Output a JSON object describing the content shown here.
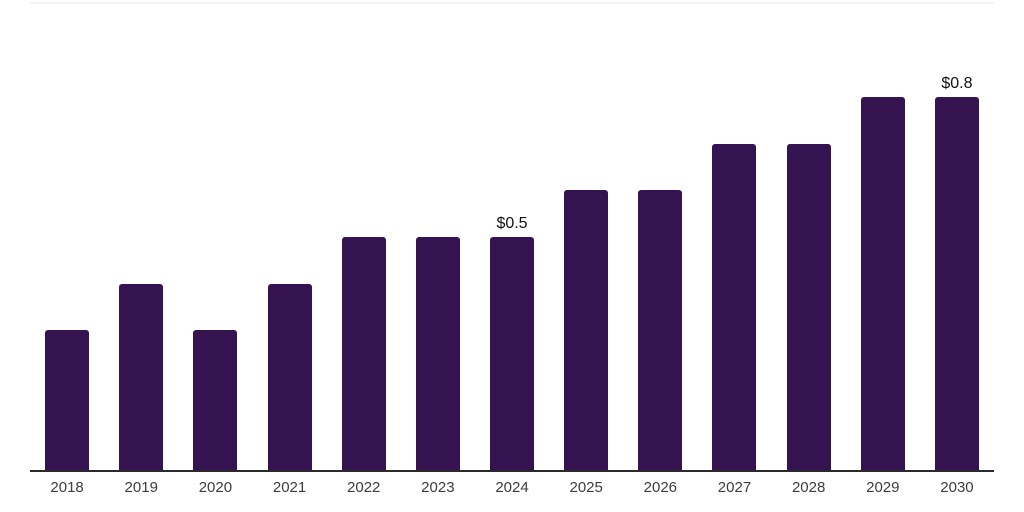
{
  "chart_data": {
    "type": "bar",
    "title": "",
    "xlabel": "",
    "ylabel": "",
    "categories": [
      "2018",
      "2019",
      "2020",
      "2021",
      "2022",
      "2023",
      "2024",
      "2025",
      "2026",
      "2027",
      "2028",
      "2029",
      "2030"
    ],
    "values": [
      0.3,
      0.4,
      0.3,
      0.4,
      0.5,
      0.5,
      0.5,
      0.6,
      0.6,
      0.7,
      0.7,
      0.8,
      0.8
    ],
    "data_labels": {
      "2024": "$0.5",
      "2030": "$0.8"
    },
    "ylim": [
      0,
      1.0
    ],
    "legend": "none",
    "grid": "top-border-line-only",
    "colors": {
      "bar": "#351351",
      "axis_line": "#2a2a2a",
      "top_gridline": "#f2f2f2",
      "tick_label": "#3d3d3d",
      "data_label": "#111111",
      "background": "#ffffff"
    }
  }
}
